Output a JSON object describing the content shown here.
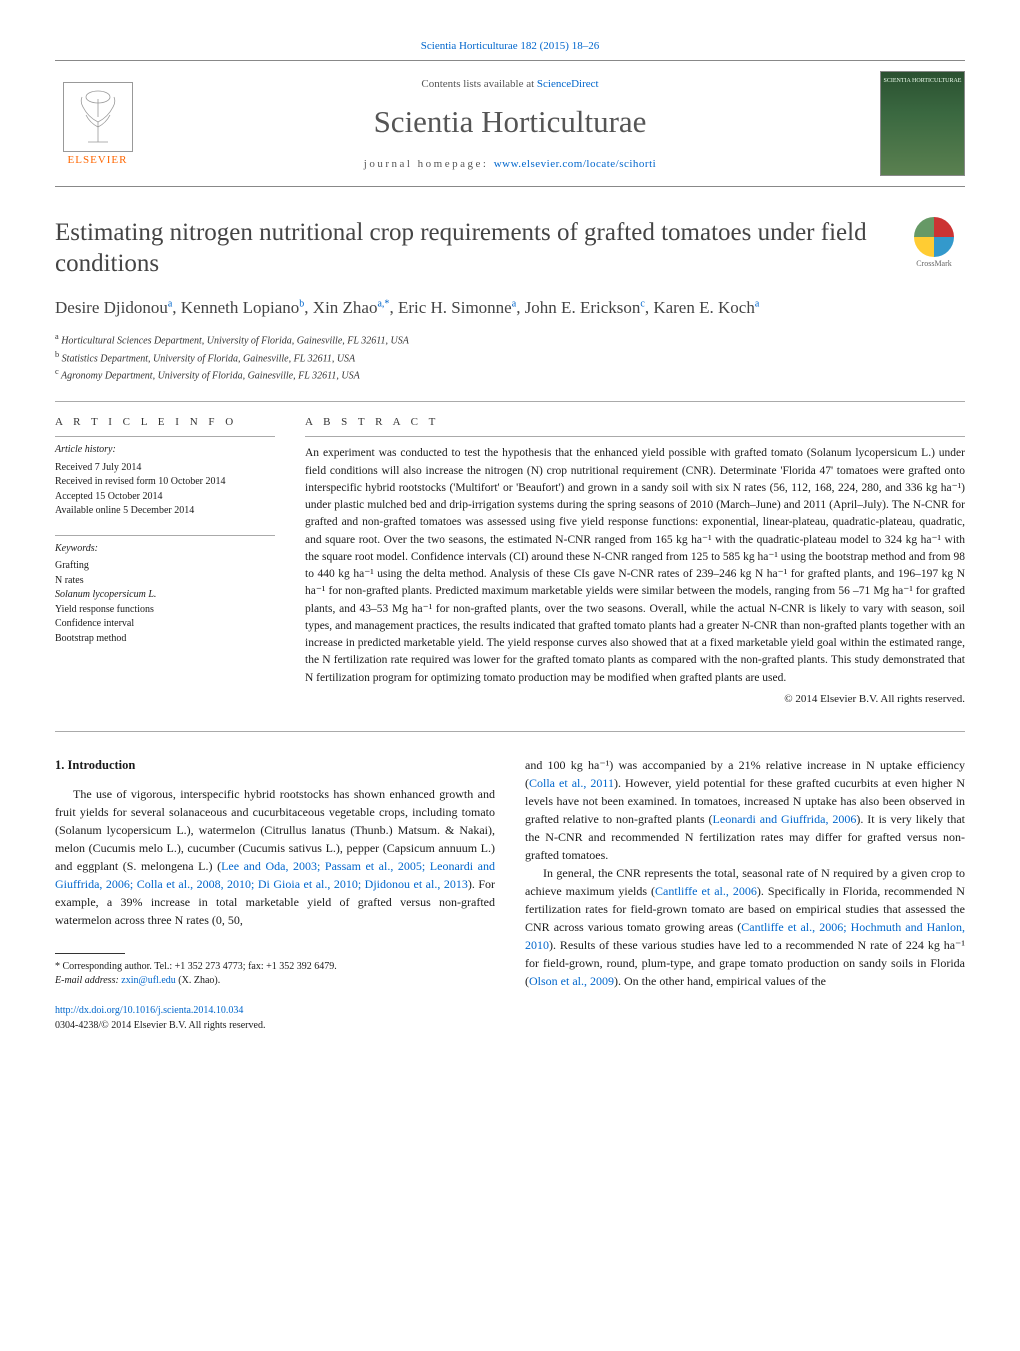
{
  "header": {
    "citation": "Scientia Horticulturae 182 (2015) 18–26",
    "contents_prefix": "Contents lists available at ",
    "contents_link": "ScienceDirect",
    "journal_title": "Scientia Horticulturae",
    "homepage_prefix": "journal homepage: ",
    "homepage_url": "www.elsevier.com/locate/scihorti",
    "publisher": "ELSEVIER",
    "cover_text": "SCIENTIA HORTICULTURAE"
  },
  "article": {
    "title": "Estimating nitrogen nutritional crop requirements of grafted tomatoes under field conditions",
    "crossmark_label": "CrossMark",
    "authors_html": "Desire Djidonou<sup>a</sup>, Kenneth Lopiano<sup>b</sup>, Xin Zhao<sup>a,*</sup>, Eric H. Simonne<sup>a</sup>, John E. Erickson<sup>c</sup>, Karen E. Koch<sup>a</sup>",
    "affiliations": [
      "a Horticultural Sciences Department, University of Florida, Gainesville, FL 32611, USA",
      "b Statistics Department, University of Florida, Gainesville, FL 32611, USA",
      "c Agronomy Department, University of Florida, Gainesville, FL 32611, USA"
    ]
  },
  "info": {
    "heading": "a r t i c l e   i n f o",
    "history_label": "Article history:",
    "history": [
      "Received 7 July 2014",
      "Received in revised form 10 October 2014",
      "Accepted 15 October 2014",
      "Available online 5 December 2014"
    ],
    "keywords_label": "Keywords:",
    "keywords": [
      "Grafting",
      "N rates",
      "Solanum lycopersicum L.",
      "Yield response functions",
      "Confidence interval",
      "Bootstrap method"
    ]
  },
  "abstract": {
    "heading": "a b s t r a c t",
    "text": "An experiment was conducted to test the hypothesis that the enhanced yield possible with grafted tomato (Solanum lycopersicum L.) under field conditions will also increase the nitrogen (N) crop nutritional requirement (CNR). Determinate 'Florida 47' tomatoes were grafted onto interspecific hybrid rootstocks ('Multifort' or 'Beaufort') and grown in a sandy soil with six N rates (56, 112, 168, 224, 280, and 336 kg ha⁻¹) under plastic mulched bed and drip-irrigation systems during the spring seasons of 2010 (March–June) and 2011 (April–July). The N-CNR for grafted and non-grafted tomatoes was assessed using five yield response functions: exponential, linear-plateau, quadratic-plateau, quadratic, and square root. Over the two seasons, the estimated N-CNR ranged from 165 kg ha⁻¹ with the quadratic-plateau model to 324 kg ha⁻¹ with the square root model. Confidence intervals (CI) around these N-CNR ranged from 125 to 585 kg ha⁻¹ using the bootstrap method and from 98 to 440 kg ha⁻¹ using the delta method. Analysis of these CIs gave N-CNR rates of 239–246 kg N ha⁻¹ for grafted plants, and 196–197 kg N ha⁻¹ for non-grafted plants. Predicted maximum marketable yields were similar between the models, ranging from 56 –71 Mg ha⁻¹ for grafted plants, and 43–53 Mg ha⁻¹ for non-grafted plants, over the two seasons. Overall, while the actual N-CNR is likely to vary with season, soil types, and management practices, the results indicated that grafted tomato plants had a greater N-CNR than non-grafted plants together with an increase in predicted marketable yield. The yield response curves also showed that at a fixed marketable yield goal within the estimated range, the N fertilization rate required was lower for the grafted tomato plants as compared with the non-grafted plants. This study demonstrated that N fertilization program for optimizing tomato production may be modified when grafted plants are used.",
    "copyright": "© 2014 Elsevier B.V. All rights reserved."
  },
  "body": {
    "section_number": "1.",
    "section_title": "Introduction",
    "left_p1": "The use of vigorous, interspecific hybrid rootstocks has shown enhanced growth and fruit yields for several solanaceous and cucurbitaceous vegetable crops, including tomato (Solanum lycopersicum L.), watermelon (Citrullus lanatus (Thunb.) Matsum. & Nakai), melon (Cucumis melo L.), cucumber (Cucumis sativus L.), pepper (Capsicum annuum L.) and eggplant (S. melongena L.) (",
    "left_cite1": "Lee and Oda, 2003; Passam et al., 2005; Leonardi and Giuffrida, 2006; Colla et al., 2008, 2010; Di Gioia et al., 2010; Djidonou et al., 2013",
    "left_p1b": "). For example, a 39% increase in total marketable yield of grafted versus non-grafted watermelon across three N rates (0, 50,",
    "right_p1a": "and 100 kg ha⁻¹) was accompanied by a 21% relative increase in N uptake efficiency (",
    "right_cite1": "Colla et al., 2011",
    "right_p1b": "). However, yield potential for these grafted cucurbits at even higher N levels have not been examined. In tomatoes, increased N uptake has also been observed in grafted relative to non-grafted plants (",
    "right_cite2": "Leonardi and Giuffrida, 2006",
    "right_p1c": "). It is very likely that the N-CNR and recommended N fertilization rates may differ for grafted versus non-grafted tomatoes.",
    "right_p2a": "In general, the CNR represents the total, seasonal rate of N required by a given crop to achieve maximum yields (",
    "right_cite3": "Cantliffe et al., 2006",
    "right_p2b": "). Specifically in Florida, recommended N fertilization rates for field-grown tomato are based on empirical studies that assessed the CNR across various tomato growing areas (",
    "right_cite4": "Cantliffe et al., 2006; Hochmuth and Hanlon, 2010",
    "right_p2c": "). Results of these various studies have led to a recommended N rate of 224 kg ha⁻¹ for field-grown, round, plum-type, and grape tomato production on sandy soils in Florida (",
    "right_cite5": "Olson et al., 2009",
    "right_p2d": "). On the other hand, empirical values of the"
  },
  "footnotes": {
    "corr": "* Corresponding author. Tel.: +1 352 273 4773; fax: +1 352 392 6479.",
    "email_label": "E-mail address: ",
    "email": "zxin@ufl.edu",
    "email_suffix": " (X. Zhao).",
    "doi_url": "http://dx.doi.org/10.1016/j.scienta.2014.10.034",
    "issn_line": "0304-4238/© 2014 Elsevier B.V. All rights reserved."
  }
}
